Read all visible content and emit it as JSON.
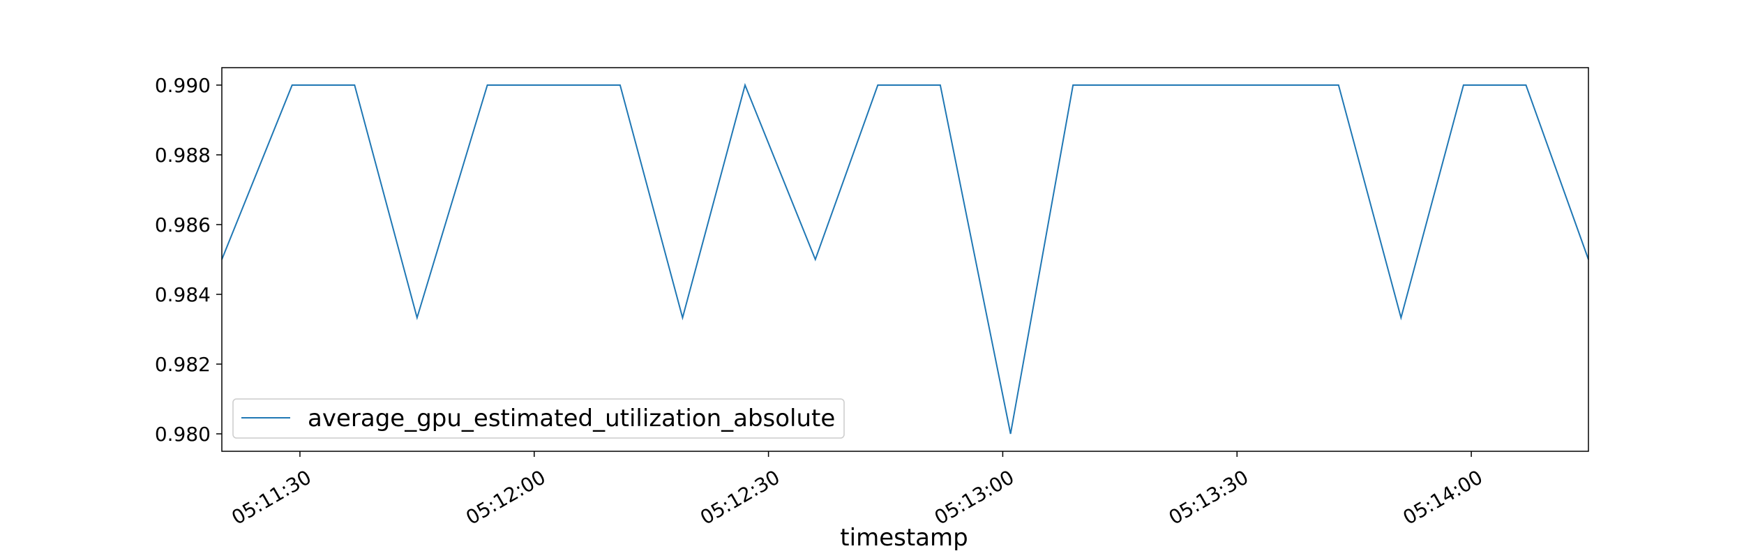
{
  "chart_data": {
    "type": "line",
    "title": "",
    "xlabel": "timestamp",
    "ylabel": "",
    "xlim": [
      "05:11:20",
      "05:14:15"
    ],
    "ylim": [
      0.9795,
      0.9905
    ],
    "grid": false,
    "legend_position": "lower-left",
    "x_ticks": [
      "05:11:30",
      "05:12:00",
      "05:12:30",
      "05:13:00",
      "05:13:30",
      "05:14:00"
    ],
    "y_ticks": [
      "0.980",
      "0.982",
      "0.984",
      "0.986",
      "0.988",
      "0.990"
    ],
    "series": [
      {
        "name": "average_gpu_estimated_utilization_absolute",
        "color": "#1f77b4",
        "x": [
          "05:11:20",
          "05:11:29",
          "05:11:37",
          "05:11:45",
          "05:11:54",
          "05:12:11",
          "05:12:19",
          "05:12:27",
          "05:12:36",
          "05:12:44",
          "05:12:52",
          "05:13:01",
          "05:13:09",
          "05:13:43",
          "05:13:51",
          "05:13:59",
          "05:14:07",
          "05:14:15"
        ],
        "values": [
          0.985,
          0.99,
          0.99,
          0.98333,
          0.99,
          0.99,
          0.98333,
          0.99,
          0.985,
          0.99,
          0.99,
          0.98,
          0.99,
          0.99,
          0.98333,
          0.99,
          0.99,
          0.985
        ]
      }
    ]
  }
}
